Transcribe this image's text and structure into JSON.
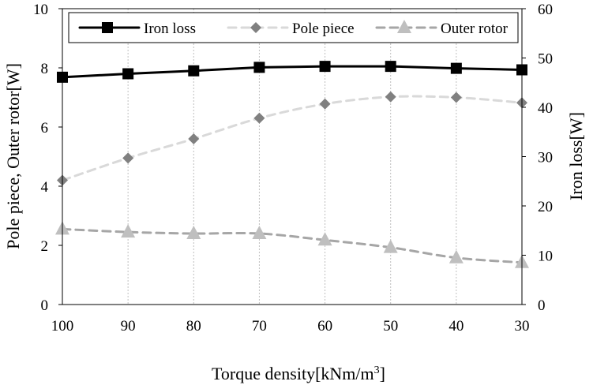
{
  "chart_data": {
    "type": "line",
    "xlabel": "Torque density[kNm/m",
    "xlabel_sup": "3",
    "xlabel_end": "]",
    "ylabel_left": "Pole piece, Outer rotor[W]",
    "ylabel_right": "Iron loss[W]",
    "categories": [
      "100",
      "90",
      "80",
      "70",
      "60",
      "50",
      "40",
      "30"
    ],
    "y_left": {
      "ticks": [
        "0",
        "2",
        "4",
        "6",
        "8",
        "10"
      ],
      "ylim": [
        0,
        10
      ]
    },
    "y_right": {
      "ticks": [
        "0",
        "10",
        "20",
        "30",
        "40",
        "50",
        "60"
      ],
      "ylim": [
        0,
        60
      ]
    },
    "grid": {
      "vertical": true,
      "horizontal": false
    },
    "legend_position": "top",
    "series": [
      {
        "name": "Iron loss",
        "axis": "right",
        "marker": "square",
        "style": "solid",
        "color": "#000000",
        "values": [
          46.1,
          46.8,
          47.4,
          48.1,
          48.3,
          48.3,
          47.9,
          47.6
        ]
      },
      {
        "name": "Pole piece",
        "axis": "left",
        "marker": "diamond",
        "style": "dashed",
        "color": "#d9d9d9",
        "marker_color": "#808080",
        "values": [
          4.2,
          4.95,
          5.6,
          6.3,
          6.78,
          7.02,
          7.0,
          6.82
        ]
      },
      {
        "name": "Outer rotor",
        "axis": "left",
        "marker": "triangle",
        "style": "dashed",
        "color": "#a6a6a6",
        "marker_color": "#bfbfbf",
        "values": [
          2.55,
          2.45,
          2.4,
          2.4,
          2.18,
          1.93,
          1.58,
          1.42
        ]
      }
    ]
  }
}
